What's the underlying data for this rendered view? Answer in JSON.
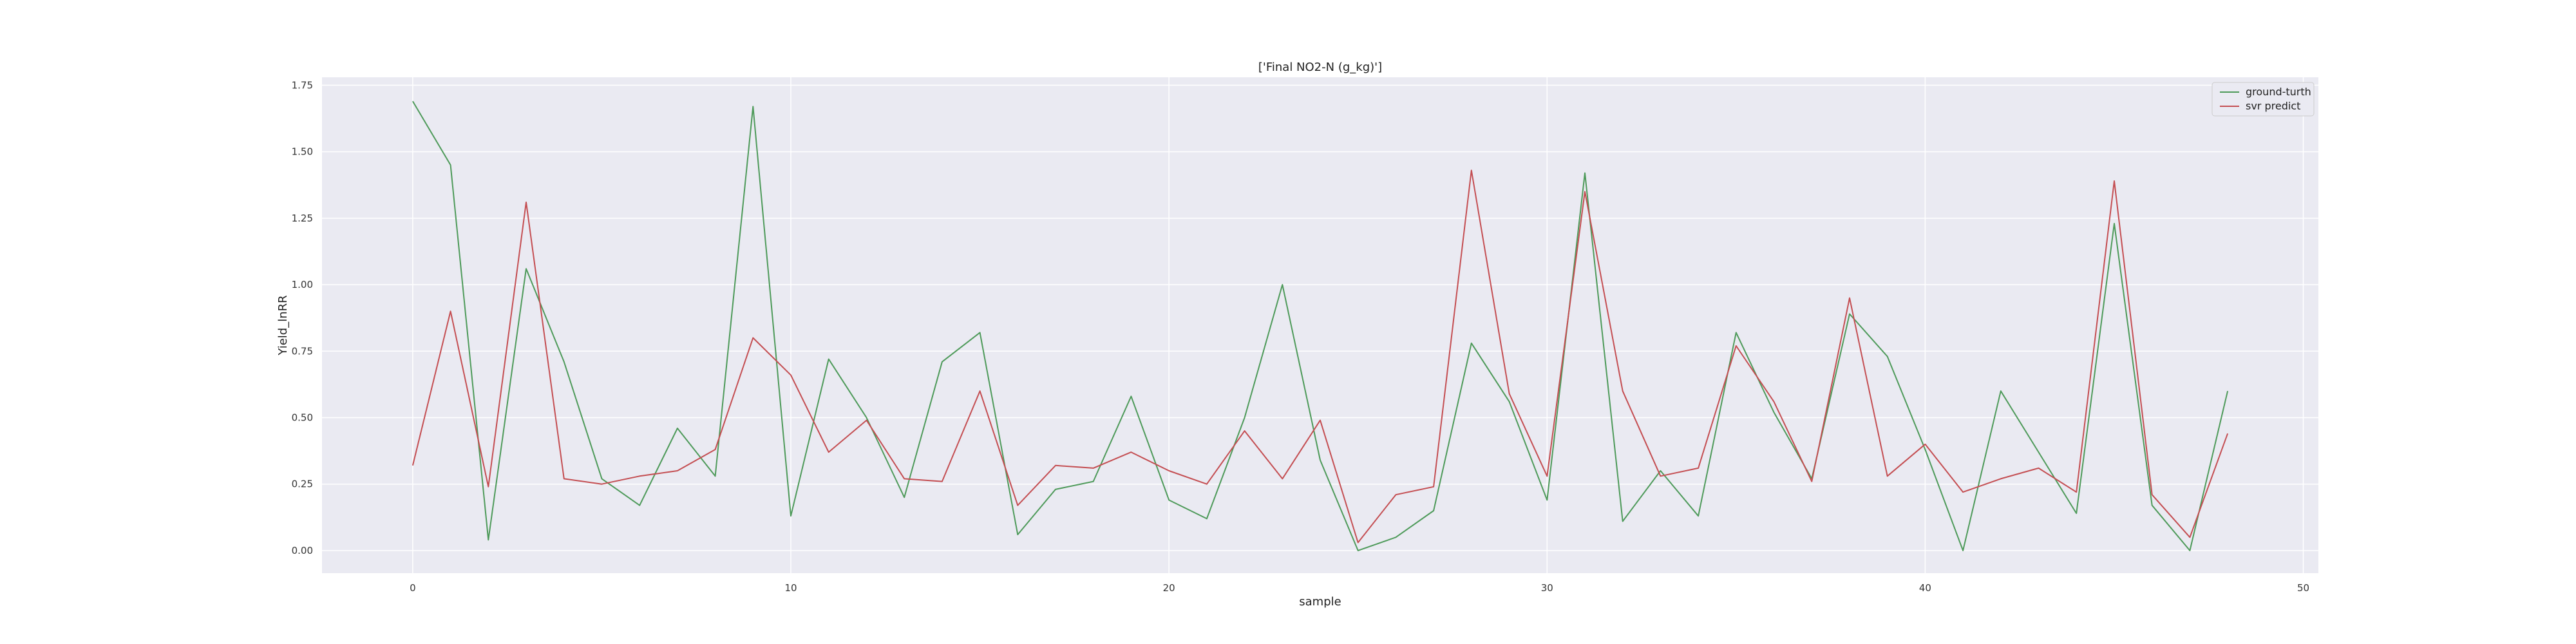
{
  "chart_data": {
    "type": "line",
    "title": "['Final NO2-N (g_kg)']",
    "xlabel": "sample",
    "ylabel": "Yield_lnRR",
    "xlim": [
      -2.4,
      50.4
    ],
    "ylim": [
      -0.085,
      1.78
    ],
    "xticks": [
      0,
      10,
      20,
      30,
      40,
      50
    ],
    "yticks": [
      0.0,
      0.25,
      0.5,
      0.75,
      1.0,
      1.25,
      1.5,
      1.75
    ],
    "xtick_labels": [
      "0",
      "10",
      "20",
      "30",
      "40",
      "50"
    ],
    "ytick_labels": [
      "0.00",
      "0.25",
      "0.50",
      "0.75",
      "1.00",
      "1.25",
      "1.50",
      "1.75"
    ],
    "grid": true,
    "legend_position": "top-right",
    "x": [
      0,
      1,
      2,
      3,
      4,
      5,
      6,
      7,
      8,
      9,
      10,
      11,
      12,
      13,
      14,
      15,
      16,
      17,
      18,
      19,
      20,
      21,
      22,
      23,
      24,
      25,
      26,
      27,
      28,
      29,
      30,
      31,
      32,
      33,
      34,
      35,
      36,
      37,
      38,
      39,
      40,
      41,
      42,
      43,
      44,
      45,
      46,
      47,
      48
    ],
    "series": [
      {
        "name": "ground-turth",
        "color": "#4e9a5a",
        "values": [
          1.69,
          1.45,
          0.04,
          1.06,
          0.71,
          0.27,
          0.17,
          0.46,
          0.28,
          1.67,
          0.13,
          0.72,
          0.5,
          0.2,
          0.71,
          0.82,
          0.06,
          0.23,
          0.26,
          0.58,
          0.19,
          0.12,
          0.5,
          1.0,
          0.34,
          0.0,
          0.05,
          0.15,
          0.78,
          0.56,
          0.19,
          1.42,
          0.11,
          0.3,
          0.13,
          0.82,
          0.52,
          0.27,
          0.89,
          0.73,
          0.38,
          0.0,
          0.6,
          0.37,
          0.14,
          1.23,
          0.17,
          0.0,
          0.6
        ]
      },
      {
        "name": "svr predict",
        "color": "#c44e52",
        "values": [
          0.32,
          0.9,
          0.24,
          1.31,
          0.27,
          0.25,
          0.28,
          0.3,
          0.38,
          0.8,
          0.66,
          0.37,
          0.49,
          0.27,
          0.26,
          0.6,
          0.17,
          0.32,
          0.31,
          0.37,
          0.3,
          0.25,
          0.45,
          0.27,
          0.49,
          0.03,
          0.21,
          0.24,
          1.43,
          0.59,
          0.28,
          1.35,
          0.6,
          0.28,
          0.31,
          0.77,
          0.56,
          0.26,
          0.95,
          0.28,
          0.4,
          0.22,
          0.27,
          0.31,
          0.22,
          1.39,
          0.21,
          0.05,
          0.44
        ]
      }
    ]
  }
}
